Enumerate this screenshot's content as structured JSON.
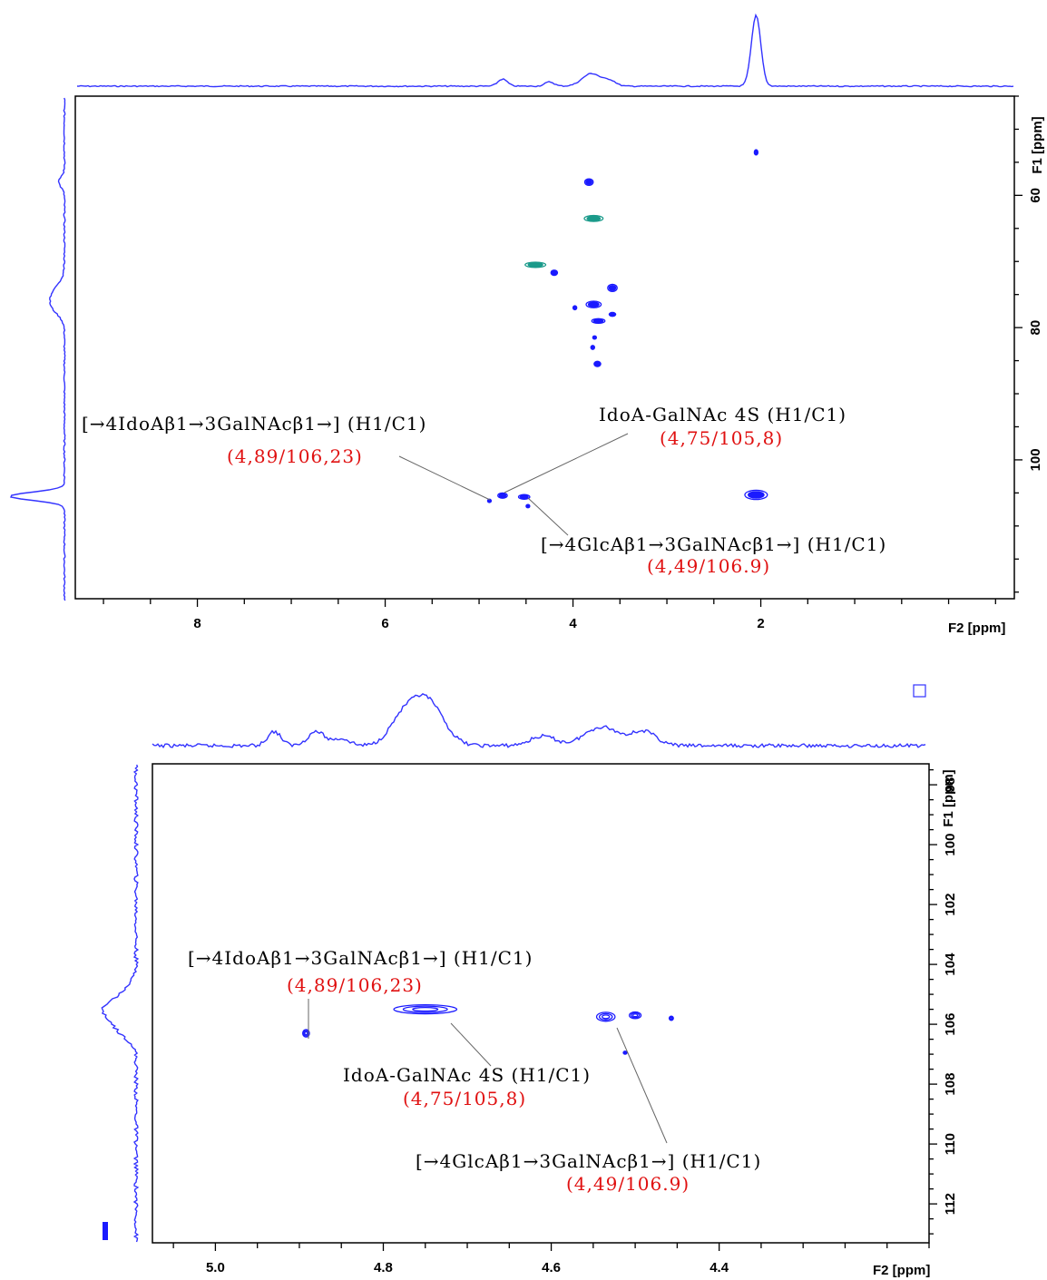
{
  "chart_data": [
    {
      "type": "scatter",
      "subtype": "2D NMR HSQC spectrum",
      "xlabel": "F2 [ppm]",
      "ylabel": "F1 [ppm]",
      "x_axis_reversed": true,
      "y_axis_reversed": true,
      "xlim": [
        9.3,
        -0.7
      ],
      "ylim": [
        45,
        121
      ],
      "xticks": [
        "8",
        "6",
        "4",
        "2"
      ],
      "xtick_values": [
        8,
        6,
        4,
        2
      ],
      "yticks": [
        "60",
        "80",
        "100"
      ],
      "ytick_values": [
        60,
        80,
        100
      ],
      "colors": {
        "positive": "#1a1aff",
        "negative": "#1a9a8a",
        "projection": "#3333ff",
        "label": "#e01010"
      },
      "peaks": [
        {
          "x": 2.05,
          "y": 53.5,
          "w": 0.03,
          "h": 0.8,
          "sign": "positive"
        },
        {
          "x": 3.83,
          "y": 58.0,
          "w": 0.09,
          "h": 1.0,
          "sign": "positive"
        },
        {
          "x": 3.78,
          "y": 63.5,
          "w": 0.2,
          "h": 0.9,
          "sign": "negative"
        },
        {
          "x": 4.4,
          "y": 70.5,
          "w": 0.22,
          "h": 0.8,
          "sign": "negative"
        },
        {
          "x": 4.2,
          "y": 71.7,
          "w": 0.07,
          "h": 0.8,
          "sign": "positive"
        },
        {
          "x": 3.58,
          "y": 74.0,
          "w": 0.1,
          "h": 1.1,
          "sign": "positive"
        },
        {
          "x": 3.78,
          "y": 76.5,
          "w": 0.16,
          "h": 1.0,
          "sign": "positive"
        },
        {
          "x": 3.98,
          "y": 77.0,
          "w": 0.04,
          "h": 0.6,
          "sign": "positive"
        },
        {
          "x": 3.58,
          "y": 78.0,
          "w": 0.07,
          "h": 0.6,
          "sign": "positive"
        },
        {
          "x": 3.73,
          "y": 79.0,
          "w": 0.14,
          "h": 0.7,
          "sign": "positive"
        },
        {
          "x": 3.77,
          "y": 81.5,
          "w": 0.03,
          "h": 0.5,
          "sign": "positive"
        },
        {
          "x": 3.79,
          "y": 83.0,
          "w": 0.04,
          "h": 0.6,
          "sign": "positive"
        },
        {
          "x": 3.74,
          "y": 85.5,
          "w": 0.07,
          "h": 0.8,
          "sign": "positive"
        },
        {
          "x": 2.05,
          "y": 105.3,
          "w": 0.24,
          "h": 1.4,
          "sign": "positive"
        },
        {
          "x": 4.75,
          "y": 105.4,
          "w": 0.1,
          "h": 0.8,
          "sign": "positive"
        },
        {
          "x": 4.52,
          "y": 105.6,
          "w": 0.12,
          "h": 0.7,
          "sign": "positive"
        },
        {
          "x": 4.89,
          "y": 106.2,
          "w": 0.03,
          "h": 0.5,
          "sign": "positive"
        },
        {
          "x": 4.48,
          "y": 107.0,
          "w": 0.03,
          "h": 0.5,
          "sign": "positive"
        }
      ],
      "top_projection_peaks": [
        [
          2.05,
          1.0,
          0.05
        ],
        [
          3.8,
          0.18,
          0.1
        ],
        [
          4.75,
          0.1,
          0.05
        ],
        [
          4.25,
          0.06,
          0.05
        ],
        [
          3.6,
          0.07,
          0.06
        ]
      ],
      "left_projection_peaks": [
        [
          105.5,
          1.0,
          0.6
        ],
        [
          75.0,
          0.2,
          1.5
        ],
        [
          77.0,
          0.15,
          1.2
        ],
        [
          58.0,
          0.1,
          0.8
        ]
      ],
      "annotations": [
        {
          "text": "[→4IdoAβ1→3GalNAcβ1→] (H1/C1)",
          "coords": "(4,89/106,23)",
          "peak_x": 4.89,
          "peak_y": 106.2
        },
        {
          "text": "IdoA-GalNAc 4S (H1/C1)",
          "coords": "(4,75/105,8)",
          "peak_x": 4.75,
          "peak_y": 105.4
        },
        {
          "text": "[→4GlcAβ1→3GalNAcβ1→] (H1/C1)",
          "coords": "(4,49/106.9)",
          "peak_x": 4.52,
          "peak_y": 105.6
        }
      ]
    },
    {
      "type": "scatter",
      "subtype": "2D NMR HSQC spectrum (zoom)",
      "xlabel": "F2 [ppm]",
      "ylabel": "F1 [ppm]",
      "x_axis_reversed": true,
      "y_axis_reversed": true,
      "xlim": [
        5.075,
        4.15
      ],
      "ylim": [
        97.3,
        113.3
      ],
      "xticks": [
        "5.0",
        "4.8",
        "4.6",
        "4.4"
      ],
      "xtick_values": [
        5.0,
        4.8,
        4.6,
        4.4
      ],
      "yticks": [
        "98",
        "100",
        "102",
        "104",
        "106",
        "108",
        "110",
        "112"
      ],
      "ytick_values": [
        98,
        100,
        102,
        104,
        106,
        108,
        110,
        112
      ],
      "colors": {
        "positive": "#1a1aff",
        "projection": "#3333ff",
        "label": "#e01010"
      },
      "peaks": [
        {
          "x": 4.892,
          "y": 106.3,
          "w": 0.008,
          "h": 0.25
        },
        {
          "x": 4.75,
          "y": 105.5,
          "w": 0.075,
          "h": 0.3
        },
        {
          "x": 4.535,
          "y": 105.75,
          "w": 0.022,
          "h": 0.3
        },
        {
          "x": 4.5,
          "y": 105.7,
          "w": 0.014,
          "h": 0.22
        },
        {
          "x": 4.457,
          "y": 105.8,
          "w": 0.005,
          "h": 0.14
        },
        {
          "x": 4.512,
          "y": 106.95,
          "w": 0.003,
          "h": 0.1
        }
      ],
      "top_projection_peaks": [
        [
          4.75,
          1.0,
          0.02
        ],
        [
          4.78,
          0.4,
          0.015
        ],
        [
          4.93,
          0.3,
          0.008
        ],
        [
          4.88,
          0.3,
          0.01
        ],
        [
          4.54,
          0.4,
          0.02
        ],
        [
          4.49,
          0.3,
          0.015
        ],
        [
          4.61,
          0.2,
          0.015
        ],
        [
          4.85,
          0.15,
          0.01
        ]
      ],
      "left_projection_peaks": [
        [
          105.5,
          1.0,
          0.35
        ],
        [
          106.2,
          0.45,
          0.3
        ],
        [
          104.8,
          0.2,
          0.25
        ]
      ],
      "annotations": [
        {
          "text": "[→4IdoAβ1→3GalNAcβ1→] (H1/C1)",
          "coords": "(4,89/106,23)",
          "peak_x": 4.892,
          "peak_y": 106.3
        },
        {
          "text": "IdoA-GalNAc 4S (H1/C1)",
          "coords": "(4,75/105,8)",
          "peak_x": 4.73,
          "peak_y": 105.55
        },
        {
          "text": "[→4GlcAβ1→3GalNAcβ1→] (H1/C1)",
          "coords": "(4,49/106.9)",
          "peak_x": 4.535,
          "peak_y": 105.8
        }
      ]
    }
  ]
}
